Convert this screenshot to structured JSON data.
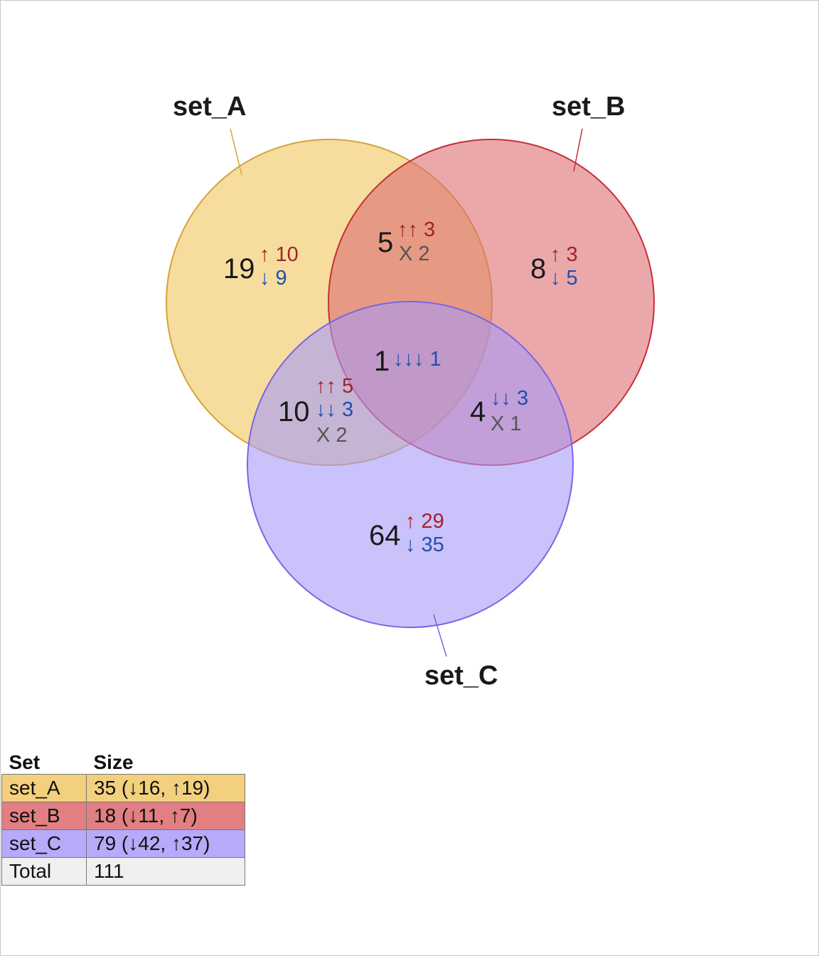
{
  "sets": [
    {
      "name": "set_A",
      "fill": "#f0c75e",
      "stroke": "#d3a43a"
    },
    {
      "name": "set_B",
      "fill": "#dc6e71",
      "stroke": "#c72e3a"
    },
    {
      "name": "set_C",
      "fill": "#a79af9",
      "stroke": "#7b65e2"
    }
  ],
  "colors": {
    "up": "#a1232b",
    "down": "#1f4fae",
    "mixed": "#555555"
  },
  "regions": {
    "A_only": {
      "count": "19",
      "up": "↑ 10",
      "down": "↓ 9"
    },
    "B_only": {
      "count": "8",
      "up": "↑ 3",
      "down": "↓ 5"
    },
    "C_only": {
      "count": "64",
      "up": "↑ 29",
      "down": "↓ 35"
    },
    "AB": {
      "count": "5",
      "up": "↑↑ 3",
      "mixed": "X 2"
    },
    "AC": {
      "count": "10",
      "up": "↑↑ 5",
      "down": "↓↓ 3",
      "mixed": "X 2"
    },
    "BC": {
      "count": "4",
      "down": "↓↓ 3",
      "mixed": "X 1"
    },
    "ABC": {
      "count": "1",
      "down": "↓↓↓ 1"
    }
  },
  "table": {
    "headers": [
      "Set",
      "Size"
    ],
    "rows": [
      {
        "set": "set_A",
        "size": "35 (↓16, ↑19)",
        "color": "#f3d07d"
      },
      {
        "set": "set_B",
        "size": "18 (↓11, ↑7)",
        "color": "#e17f82"
      },
      {
        "set": "set_C",
        "size": "79 (↓42, ↑37)",
        "color": "#b7aafb"
      },
      {
        "set": "Total",
        "size": "111",
        "color": "#f0f0f0"
      }
    ]
  }
}
